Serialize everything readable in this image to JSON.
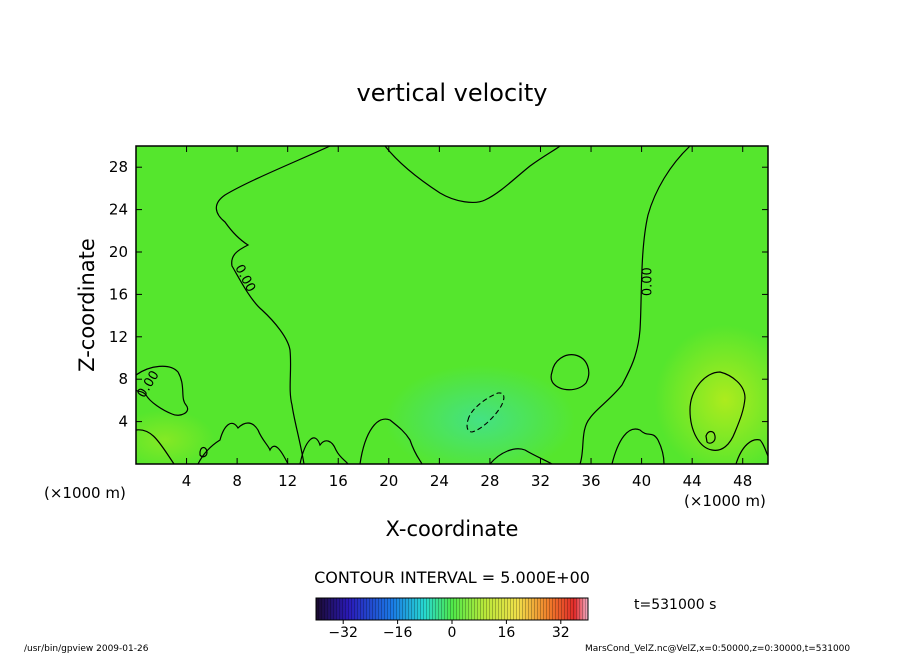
{
  "chart_data": {
    "type": "heatmap",
    "title": "vertical velocity",
    "xlabel": "X-coordinate",
    "ylabel": "Z-coordinate",
    "x_unit": "(×1000 m)",
    "xlim": [
      0,
      50
    ],
    "ylim": [
      0,
      30
    ],
    "x_ticks": [
      4,
      8,
      12,
      16,
      20,
      24,
      28,
      32,
      36,
      40,
      44,
      48
    ],
    "y_ticks": [
      4,
      8,
      12,
      16,
      20,
      24,
      28
    ],
    "contour_labels": [
      {
        "text": "0.00",
        "x": 8.6,
        "z": 17.5,
        "angle": 62
      },
      {
        "text": "0.00",
        "x": 40.5,
        "z": 17.2,
        "angle": -90
      },
      {
        "text": "0.00",
        "x": 1.0,
        "z": 7.5,
        "angle": -58
      }
    ],
    "contour_interval": "CONTOUR INTERVAL = 5.000E+00",
    "time_label": "t=531000 s",
    "colorbar": {
      "min": -40,
      "max": 40,
      "ticks": [
        -32,
        -16,
        0,
        16,
        32
      ],
      "tick_labels": [
        "−32",
        "−16",
        "0",
        "16",
        "32"
      ]
    },
    "colors": {
      "background_field": "#55e62d",
      "zero_contour": "#000000"
    }
  },
  "footer": {
    "left": "/usr/bin/gpview  2009-01-26",
    "right": "MarsCond_VelZ.nc@VelZ,x=0:50000,z=0:30000,t=531000"
  }
}
